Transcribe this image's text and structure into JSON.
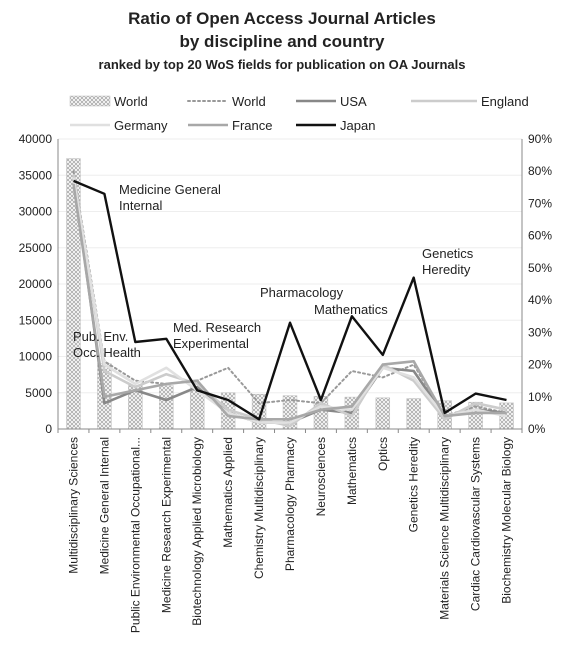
{
  "chart_data": {
    "type": "bar+line",
    "title_lines": [
      "Ratio of Open Access Journal Articles",
      "by discipline and country"
    ],
    "subtitle": "ranked by top 20 WoS fields for publication on OA Journals",
    "categories": [
      "Multidisciplinary Sciences",
      "Medicine General Internal",
      "Public Environmental Occupational...",
      "Medicine Research Experimental",
      "Biotechnology Applied Microbiology",
      "Mathematics Applied",
      "Chemistry Multidisciplinary",
      "Pharmacology Pharmacy",
      "Neurosciences",
      "Mathematics",
      "Optics",
      "Genetics Heredity",
      "Materials Science Multidisciplinary",
      "Cardiac Cardiovascular Systems",
      "Biochemistry Molecular Biology"
    ],
    "y_left": {
      "min": 0,
      "max": 40000,
      "ticks": [
        "0",
        "5000",
        "10000",
        "15000",
        "20000",
        "25000",
        "30000",
        "35000",
        "40000"
      ],
      "tick_values": [
        0,
        5000,
        10000,
        15000,
        20000,
        25000,
        30000,
        35000,
        40000
      ]
    },
    "y_right": {
      "min": 0,
      "max": 0.9,
      "ticks": [
        "0%",
        "10%",
        "20%",
        "30%",
        "40%",
        "50%",
        "60%",
        "70%",
        "80%",
        "90%"
      ],
      "tick_values": [
        0,
        0.1,
        0.2,
        0.3,
        0.4,
        0.5,
        0.6,
        0.7,
        0.8,
        0.9
      ]
    },
    "bars": {
      "name": "World",
      "axis": "left",
      "color": "#cfcfcf",
      "values": [
        37300,
        9000,
        6000,
        6000,
        5800,
        5000,
        4800,
        4600,
        4500,
        4400,
        4300,
        4200,
        3900,
        3700,
        3600
      ]
    },
    "series": [
      {
        "name": "World",
        "axis": "right",
        "color": "#999999",
        "dash": "dotted",
        "values": [
          0.8,
          0.21,
          0.15,
          0.14,
          0.15,
          0.19,
          0.08,
          0.09,
          0.08,
          0.18,
          0.16,
          0.2,
          0.04,
          0.07,
          0.05
        ]
      },
      {
        "name": "USA",
        "axis": "right",
        "color": "#888888",
        "dash": "solid",
        "values": [
          0.78,
          0.08,
          0.12,
          0.09,
          0.13,
          0.05,
          0.02,
          0.02,
          0.06,
          0.05,
          0.19,
          0.18,
          0.04,
          0.06,
          0.05
        ]
      },
      {
        "name": "England",
        "axis": "right",
        "color": "#cccccc",
        "dash": "solid",
        "values": [
          0.79,
          0.18,
          0.13,
          0.17,
          0.14,
          0.06,
          0.03,
          0.01,
          0.08,
          0.04,
          0.2,
          0.15,
          0.03,
          0.08,
          0.06
        ]
      },
      {
        "name": "Germany",
        "axis": "right",
        "color": "#e0e0e0",
        "dash": "solid",
        "values": [
          0.78,
          0.2,
          0.14,
          0.19,
          0.12,
          0.05,
          0.02,
          0.02,
          0.07,
          0.06,
          0.19,
          0.16,
          0.04,
          0.06,
          0.04
        ]
      },
      {
        "name": "France",
        "axis": "right",
        "color": "#a8a8a8",
        "dash": "solid",
        "values": [
          0.76,
          0.1,
          0.12,
          0.14,
          0.15,
          0.04,
          0.03,
          0.03,
          0.06,
          0.07,
          0.2,
          0.21,
          0.04,
          0.05,
          0.05
        ]
      },
      {
        "name": "Japan",
        "axis": "right",
        "color": "#111111",
        "dash": "solid",
        "values": [
          0.77,
          0.73,
          0.27,
          0.28,
          0.12,
          0.09,
          0.03,
          0.33,
          0.09,
          0.35,
          0.23,
          0.47,
          0.05,
          0.11,
          0.09
        ]
      }
    ],
    "legend": {
      "placement": "top",
      "entries": [
        "World",
        "World",
        "USA",
        "England",
        "Germany",
        "France",
        "Japan"
      ]
    },
    "annotations": [
      {
        "lines": [
          "Medicine General",
          "Internal"
        ]
      },
      {
        "lines": [
          "Pub. Env.",
          "Occ. Health"
        ]
      },
      {
        "lines": [
          "Med. Research",
          "Experimental"
        ]
      },
      {
        "lines": [
          "Pharmacology"
        ]
      },
      {
        "lines": [
          "Mathematics"
        ]
      },
      {
        "lines": [
          "Genetics",
          "Heredity"
        ]
      }
    ]
  }
}
